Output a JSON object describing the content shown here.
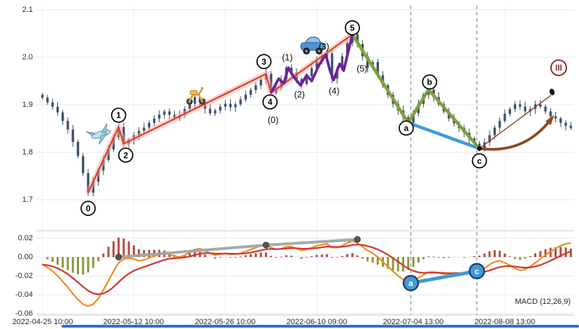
{
  "chart_data": {
    "type": "candlestick+macd",
    "x_axis": {
      "ticks": [
        {
          "index": 0,
          "label": "2022-04-25 10:00"
        },
        {
          "index": 18,
          "label": "2022-05-12 10:00"
        },
        {
          "index": 36,
          "label": "2022-05-26 10:00"
        },
        {
          "index": 54,
          "label": "2022-06-10 09:00"
        },
        {
          "index": 73,
          "label": "2022-07-04 13:00"
        },
        {
          "index": 91,
          "label": "2022-08-08 13:00"
        }
      ]
    },
    "main_panel": {
      "y_ticks": [
        "2.1",
        "2.0",
        "1.9",
        "1.8",
        "1.7"
      ],
      "y_tick_values": [
        2.1,
        2.0,
        1.9,
        1.8,
        1.7
      ],
      "closes": [
        1.915,
        1.905,
        1.896,
        1.884,
        1.866,
        1.848,
        1.822,
        1.792,
        1.756,
        1.715,
        1.738,
        1.762,
        1.784,
        1.806,
        1.832,
        1.853,
        1.818,
        1.826,
        1.836,
        1.845,
        1.852,
        1.862,
        1.871,
        1.879,
        1.886,
        1.879,
        1.871,
        1.878,
        1.891,
        1.902,
        1.916,
        1.906,
        1.892,
        1.882,
        1.888,
        1.896,
        1.902,
        1.895,
        1.901,
        1.911,
        1.921,
        1.931,
        1.941,
        1.953,
        1.965,
        1.925,
        1.936,
        1.952,
        1.978,
        1.968,
        1.954,
        1.944,
        1.96,
        1.977,
        1.992,
        2.002,
        2.008,
        1.955,
        1.976,
        2.002,
        2.03,
        2.048,
        2.028,
        2.002,
        1.978,
        1.99,
        1.962,
        1.941,
        1.921,
        1.902,
        1.888,
        1.874,
        1.862,
        1.882,
        1.902,
        1.921,
        1.932,
        1.916,
        1.901,
        1.886,
        1.871,
        1.861,
        1.851,
        1.841,
        1.829,
        1.818,
        1.808,
        1.821,
        1.836,
        1.852,
        1.866,
        1.881,
        1.891,
        1.901,
        1.896,
        1.886,
        1.891,
        1.901,
        1.896,
        1.886,
        1.876,
        1.871,
        1.862,
        1.856,
        1.851
      ],
      "colors": {
        "candle": "#3f526b",
        "red_wave": "#d8402f",
        "red_glow": "#f5a89b",
        "purple_wave": "#6f21a0",
        "green_wave": "#7fa13a",
        "blue_wave": "#3e9bd8",
        "projection": "#8c4a21"
      },
      "red_wave_points": [
        [
          9,
          1.715
        ],
        [
          15,
          1.853
        ],
        [
          16,
          1.818
        ],
        [
          44,
          1.965
        ],
        [
          45,
          1.925
        ],
        [
          61,
          2.048
        ]
      ],
      "purple_wave_points": [
        [
          45,
          1.925
        ],
        [
          46.5,
          1.955
        ],
        [
          47.5,
          1.945
        ],
        [
          48.4,
          1.978
        ],
        [
          49.5,
          1.958
        ],
        [
          50.8,
          1.941
        ],
        [
          52,
          1.962
        ],
        [
          53,
          1.95
        ],
        [
          54.5,
          1.985
        ],
        [
          55.8,
          2.005
        ],
        [
          56.6,
          1.972
        ],
        [
          57.3,
          1.952
        ],
        [
          58.5,
          1.986
        ],
        [
          59.3,
          1.972
        ],
        [
          61,
          2.048
        ]
      ],
      "green_wave_points": [
        [
          61,
          2.048
        ],
        [
          72,
          1.862
        ],
        [
          76,
          1.932
        ],
        [
          86,
          1.808
        ]
      ],
      "blue_wave_points": [
        [
          72,
          1.862
        ],
        [
          86,
          1.808
        ]
      ],
      "projection": {
        "start": [
          86,
          1.808
        ],
        "curve_control": [
          95,
          1.795
        ],
        "curve_end": [
          100.4,
          1.874
        ],
        "line_end": [
          100.1,
          1.92
        ],
        "dot": [
          100.3,
          1.927
        ],
        "target_label": "III",
        "target_pos": [
          101.6,
          1.978
        ]
      },
      "wave_labels": [
        {
          "text": "0",
          "x": 9,
          "y": 1.682,
          "style": "circle"
        },
        {
          "text": "1",
          "x": 15,
          "y": 1.878,
          "style": "circle"
        },
        {
          "text": "2",
          "x": 16.4,
          "y": 1.794,
          "style": "circle"
        },
        {
          "text": "3",
          "x": 43.6,
          "y": 1.991,
          "style": "circle"
        },
        {
          "text": "4",
          "x": 44.8,
          "y": 1.906,
          "style": "circle"
        },
        {
          "text": "5",
          "x": 61,
          "y": 2.062,
          "style": "circle"
        },
        {
          "text": "(0)",
          "x": 45.4,
          "y": 1.868,
          "style": "plain"
        },
        {
          "text": "(1)",
          "x": 48.2,
          "y": 1.999,
          "style": "plain"
        },
        {
          "text": "(2)",
          "x": 50.6,
          "y": 1.921,
          "style": "plain"
        },
        {
          "text": "(3)",
          "x": 55.4,
          "y": 2.022,
          "style": "plain"
        },
        {
          "text": "(4)",
          "x": 57.4,
          "y": 1.929,
          "style": "plain"
        },
        {
          "text": "(5)",
          "x": 62.9,
          "y": 1.976,
          "style": "plain"
        },
        {
          "text": "a",
          "x": 71.6,
          "y": 1.851,
          "style": "circle"
        },
        {
          "text": "b",
          "x": 76.2,
          "y": 1.948,
          "style": "circle"
        },
        {
          "text": "c",
          "x": 86,
          "y": 1.782,
          "style": "circle"
        }
      ],
      "markers": [
        {
          "icon": "airplane",
          "x": 11.5,
          "y": 1.838
        },
        {
          "icon": "scooter",
          "x": 30.2,
          "y": 1.92
        },
        {
          "icon": "car",
          "x": 53.2,
          "y": 2.022
        }
      ]
    },
    "macd_panel": {
      "y_ticks": [
        "0.02",
        "0.00",
        "-0.02",
        "-0.04",
        "-0.06"
      ],
      "y_tick_values": [
        0.02,
        0,
        -0.02,
        -0.04,
        -0.06
      ],
      "params_label": "MACD (12,26,9)",
      "signal_period": 9,
      "macd": [
        -0.008,
        -0.011,
        -0.015,
        -0.02,
        -0.026,
        -0.032,
        -0.039,
        -0.045,
        -0.05,
        -0.052,
        -0.05,
        -0.044,
        -0.035,
        -0.025,
        -0.015,
        -0.006,
        -0.002,
        -0.001,
        -0.002,
        -0.004,
        -0.003,
        -0.001,
        0.001,
        0.003,
        0.004,
        0.003,
        0.001,
        0.0,
        0.002,
        0.005,
        0.008,
        0.009,
        0.007,
        0.004,
        0.002,
        0.003,
        0.004,
        0.003,
        0.003,
        0.004,
        0.006,
        0.008,
        0.01,
        0.012,
        0.013,
        0.01,
        0.008,
        0.009,
        0.011,
        0.011,
        0.009,
        0.007,
        0.008,
        0.01,
        0.012,
        0.013,
        0.014,
        0.01,
        0.01,
        0.012,
        0.015,
        0.017,
        0.015,
        0.011,
        0.007,
        0.004,
        0.0,
        -0.005,
        -0.01,
        -0.015,
        -0.02,
        -0.024,
        -0.026,
        -0.025,
        -0.022,
        -0.019,
        -0.016,
        -0.016,
        -0.017,
        -0.018,
        -0.018,
        -0.017,
        -0.017,
        -0.018,
        -0.017,
        -0.016,
        -0.015,
        -0.012,
        -0.008,
        -0.005,
        -0.004,
        -0.006,
        -0.009,
        -0.012,
        -0.014,
        -0.013,
        -0.01,
        -0.006,
        -0.002,
        0.002,
        0.006,
        0.009,
        0.012,
        0.014,
        0.015
      ],
      "colors": {
        "macd_line": "#f08c1e",
        "signal_line": "#cf3b33",
        "hist_pos": "#a93a2e",
        "hist_neg": "#7e8c22",
        "trend": "#a0a4a8",
        "segment": "#3e9bd8"
      },
      "gray_trend_points": [
        [
          15,
          0.0
        ],
        [
          44,
          0.0127
        ],
        [
          62,
          0.0187
        ]
      ],
      "blue_segment": {
        "points": [
          [
            72.5,
            -0.0276
          ],
          [
            85.5,
            -0.0149
          ]
        ],
        "start_label": "a",
        "end_label": "c"
      }
    },
    "guide_lines": {
      "vertical_dashed_x": [
        72.5,
        85.5
      ]
    }
  }
}
